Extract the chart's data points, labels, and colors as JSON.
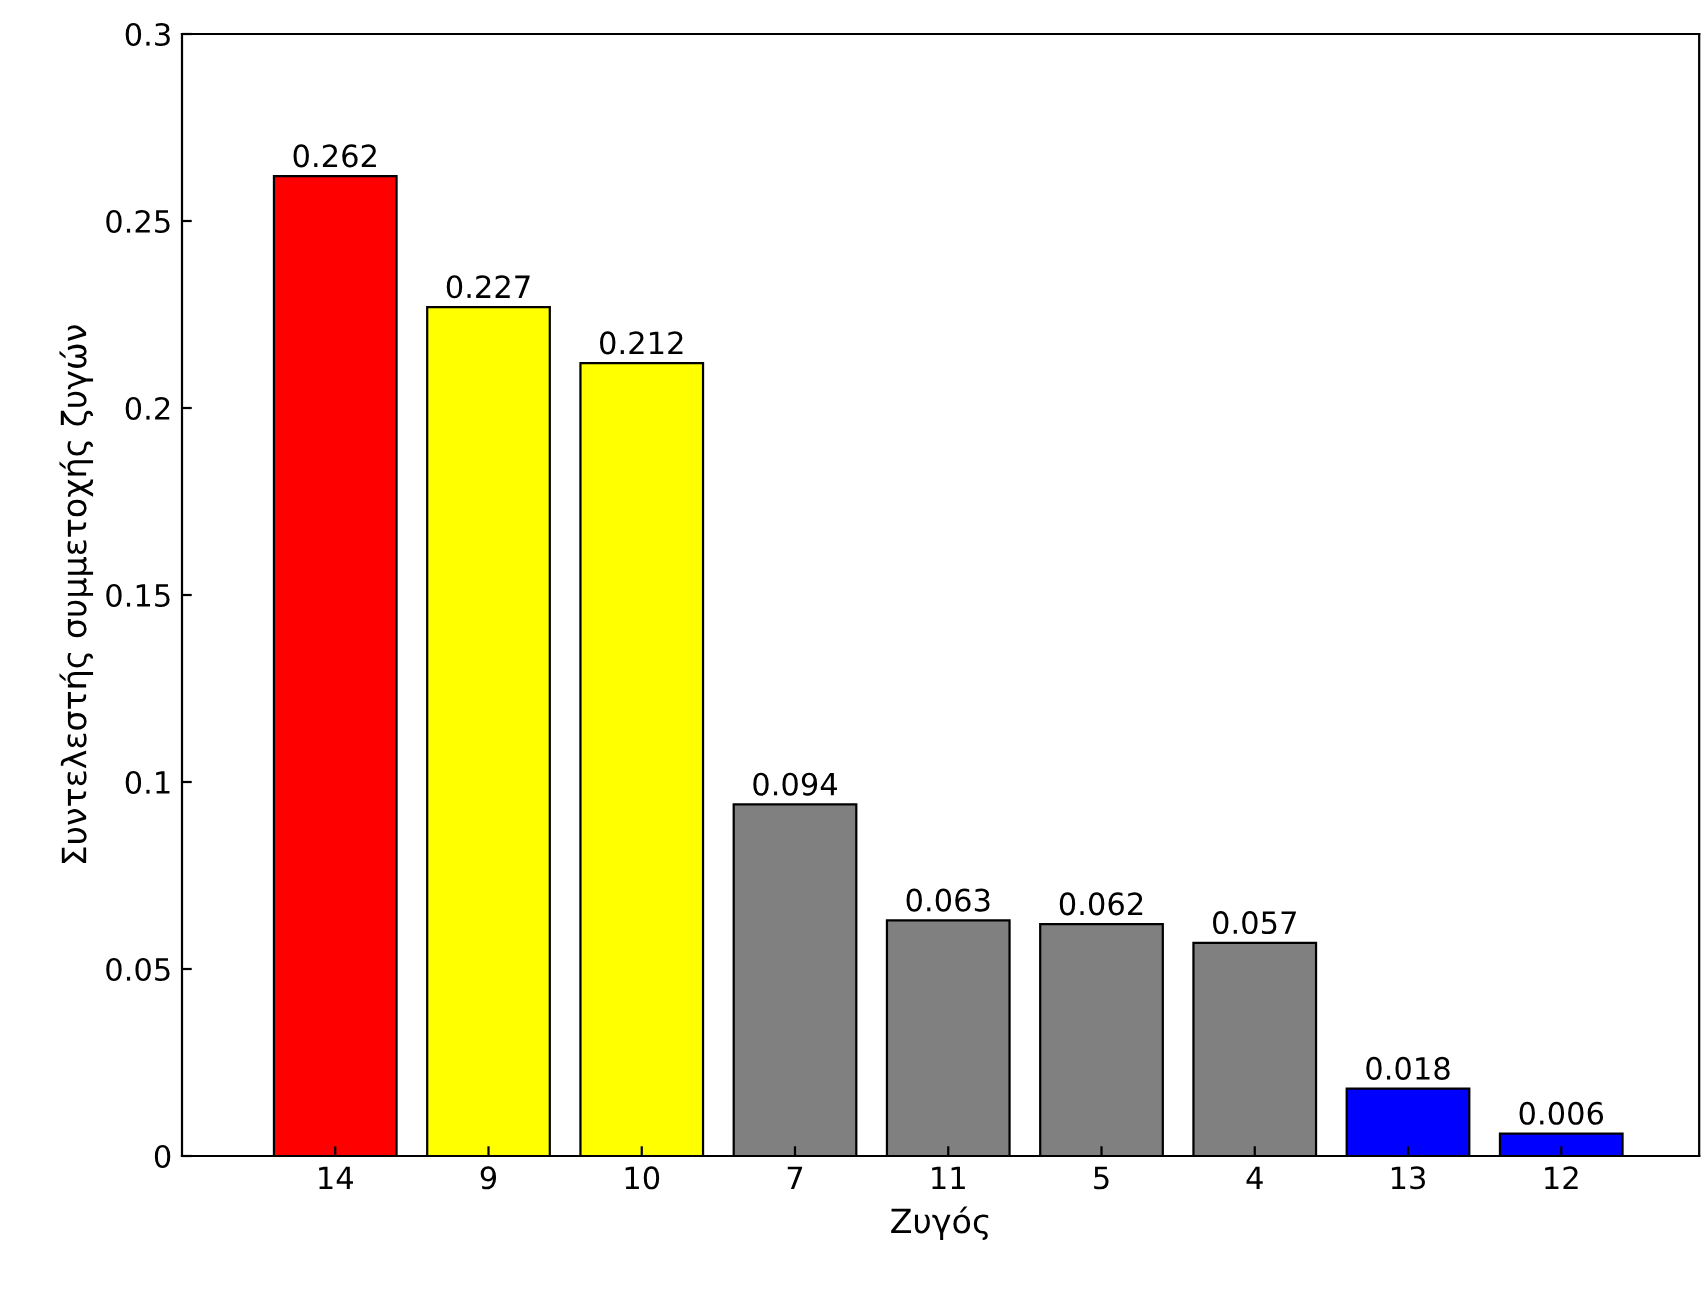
{
  "chart_data": {
    "type": "bar",
    "xlabel": "Ζυγός",
    "ylabel": "Συντελεστής συμμετοχής ζυγών",
    "categories": [
      "14",
      "9",
      "10",
      "7",
      "11",
      "5",
      "4",
      "13",
      "12"
    ],
    "values": [
      0.262,
      0.227,
      0.212,
      0.094,
      0.063,
      0.062,
      0.057,
      0.018,
      0.006
    ],
    "colors": [
      "#ff0000",
      "#ffff00",
      "#ffff00",
      "#808080",
      "#808080",
      "#808080",
      "#808080",
      "#0000ff",
      "#0000ff"
    ],
    "ylim": [
      0,
      0.3
    ],
    "yticks": [
      0,
      0.05,
      0.1,
      0.15,
      0.2,
      0.25,
      0.3
    ],
    "data_labels": true,
    "grid": false,
    "legend": false
  }
}
